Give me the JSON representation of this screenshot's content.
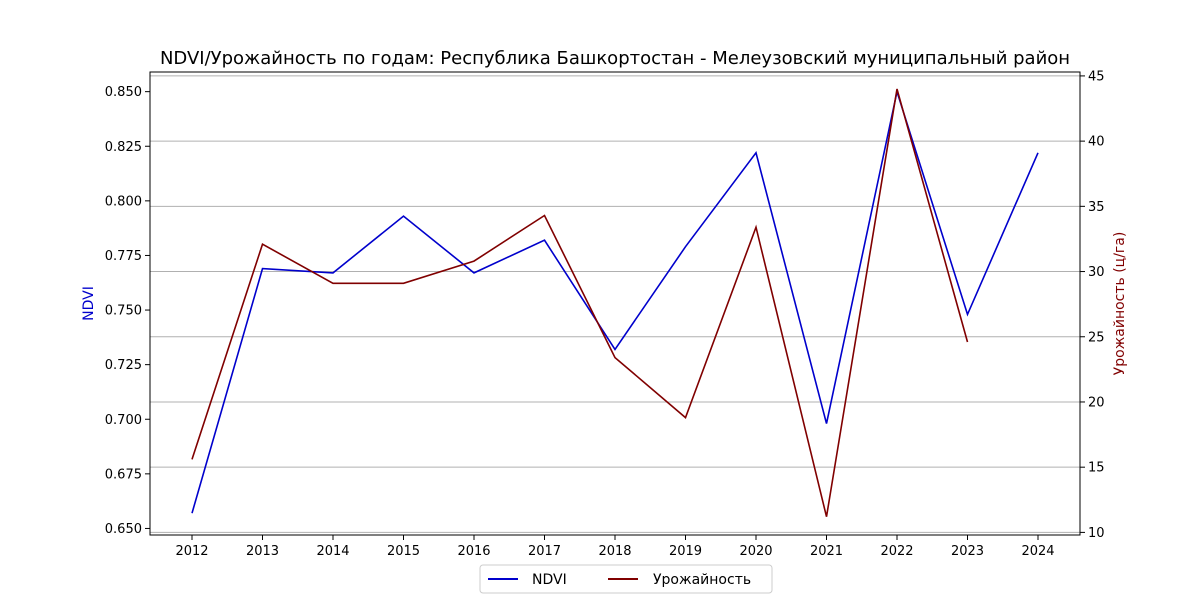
{
  "chart_data": {
    "type": "line",
    "title": "NDVI/Урожайность по годам: Республика Башкортостан - Мелеузовский муниципальный район",
    "x": [
      2012,
      2013,
      2014,
      2015,
      2016,
      2017,
      2018,
      2019,
      2020,
      2021,
      2022,
      2023,
      2024
    ],
    "left_axis": {
      "label": "NDVI",
      "color": "#0000cc",
      "ylim": [
        0.647,
        0.859
      ],
      "ticks": [
        "0.650",
        "0.675",
        "0.700",
        "0.725",
        "0.750",
        "0.775",
        "0.800",
        "0.825",
        "0.850"
      ]
    },
    "right_axis": {
      "label": "Урожайность (ц/га)",
      "color": "#800000",
      "ylim": [
        9.8,
        45.3
      ],
      "ticks": [
        "10",
        "15",
        "20",
        "25",
        "30",
        "35",
        "40",
        "45"
      ]
    },
    "series": [
      {
        "name": "NDVI",
        "axis": "left",
        "color": "#0000cc",
        "values": [
          0.657,
          0.769,
          0.767,
          0.793,
          0.767,
          0.782,
          0.732,
          0.779,
          0.822,
          0.698,
          0.85,
          0.748,
          0.822
        ]
      },
      {
        "name": "Урожайность",
        "axis": "right",
        "color": "#800000",
        "values": [
          15.6,
          32.1,
          29.1,
          29.1,
          30.8,
          34.3,
          23.4,
          18.8,
          33.4,
          11.2,
          44.0,
          24.6,
          null
        ]
      }
    ],
    "grid": true,
    "grid_axis": "right-y",
    "legend_position": "bottom-center"
  }
}
